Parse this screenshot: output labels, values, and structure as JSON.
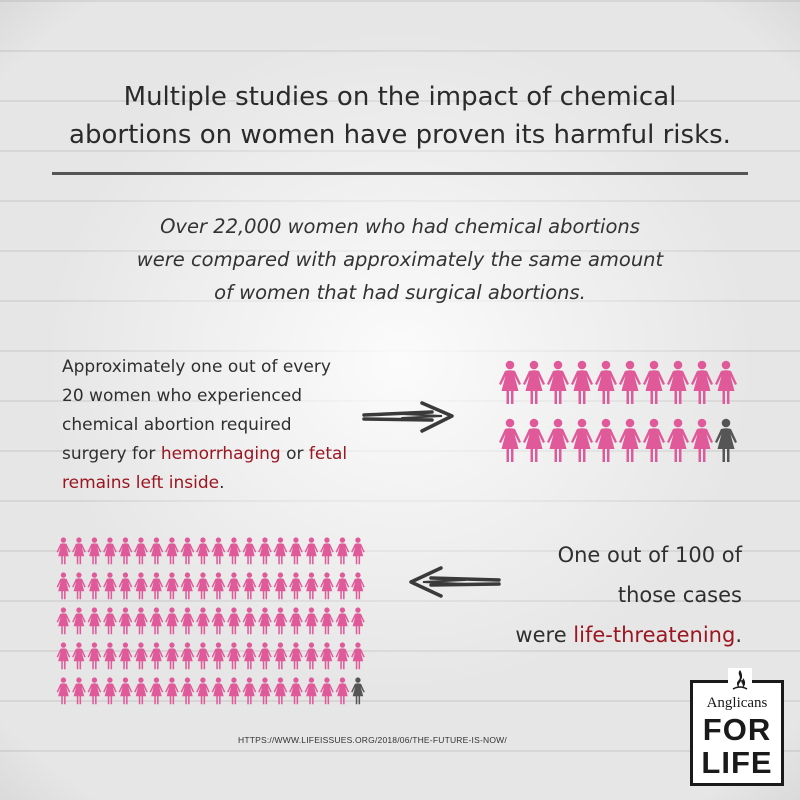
{
  "headline": {
    "line1": "Multiple studies on the impact of chemical",
    "line2": "abortions on women have proven its harmful risks."
  },
  "subheading": {
    "line1": "Over 22,000 women who had chemical abortions",
    "line2": "were compared with approximately the same amount",
    "line3": "of women that had surgical abortions."
  },
  "left_block": {
    "line1": "Approximately one out of every",
    "line2": "20 women who experienced",
    "line3": "chemical abortion required",
    "line4_pre": "surgery for ",
    "line4_hl1": "hemorrhaging",
    "line4_mid": " or ",
    "line4_hl2": "fetal",
    "line5_hl": "remains left inside",
    "line5_post": "."
  },
  "right_block": {
    "line1": "One out of 100 of",
    "line2": "those cases",
    "line3_pre": "were ",
    "line3_hl": "life-threatening",
    "line3_post": "."
  },
  "grid_small": {
    "total": 20,
    "highlighted": 1,
    "columns": 10
  },
  "grid_large": {
    "total": 100,
    "highlighted": 1,
    "columns": 20
  },
  "colors": {
    "pink": "#e05a9a",
    "highlight_figure": "#555555",
    "accent_text": "#9b1620",
    "rule": "#555555"
  },
  "source": "HTTPS://WWW.LIFEISSUES.ORG/2018/06/THE-FUTURE-IS-NOW/",
  "logo": {
    "line1": "Anglicans",
    "line2": "FOR",
    "line3": "LIFE",
    "icon": "flame-icon"
  }
}
